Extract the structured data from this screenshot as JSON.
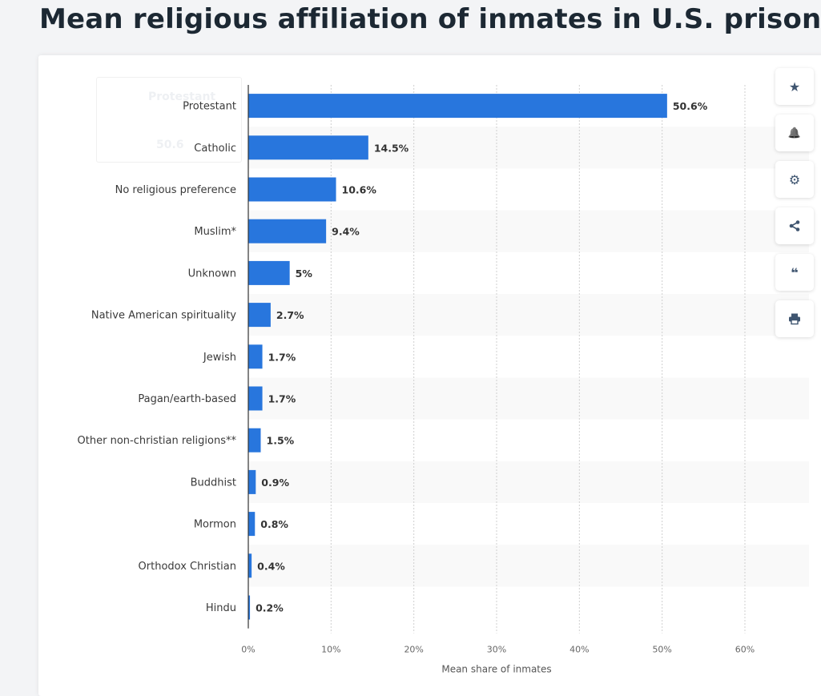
{
  "page": {
    "title": "Mean religious affiliation of inmates in U.S. prisons, as repor"
  },
  "tooltip_ghost": {
    "category": "Protestant",
    "value": "50.6"
  },
  "toolbar": [
    {
      "icon": "star-icon",
      "glyph": "★"
    },
    {
      "icon": "bell-icon",
      "glyph": "🔔"
    },
    {
      "icon": "gear-icon",
      "glyph": "⚙"
    },
    {
      "icon": "share-icon",
      "glyph": "⋖"
    },
    {
      "icon": "quote-icon",
      "glyph": "❝"
    },
    {
      "icon": "print-icon",
      "glyph": "⎙"
    }
  ],
  "chart_data": {
    "type": "bar",
    "orientation": "horizontal",
    "categories": [
      "Protestant",
      "Catholic",
      "No religious preference",
      "Muslim*",
      "Unknown",
      "Native American spirituality",
      "Jewish",
      "Pagan/earth-based",
      "Other non-christian religions**",
      "Buddhist",
      "Mormon",
      "Orthodox Christian",
      "Hindu"
    ],
    "values": [
      50.6,
      14.5,
      10.6,
      9.4,
      5,
      2.7,
      1.7,
      1.7,
      1.5,
      0.9,
      0.8,
      0.4,
      0.2
    ],
    "value_labels": [
      "50.6%",
      "14.5%",
      "10.6%",
      "9.4%",
      "5%",
      "2.7%",
      "1.7%",
      "1.7%",
      "1.5%",
      "0.9%",
      "0.8%",
      "0.4%",
      "0.2%"
    ],
    "xlabel": "Mean share of inmates",
    "ylabel": "",
    "xlim": [
      0,
      60
    ],
    "xticks": [
      0,
      10,
      20,
      30,
      40,
      50,
      60
    ],
    "xtick_labels": [
      "0%",
      "10%",
      "20%",
      "30%",
      "40%",
      "50%",
      "60%"
    ],
    "grid": true,
    "bar_color": "#2876dd",
    "band_color": "#f9f9f9"
  }
}
